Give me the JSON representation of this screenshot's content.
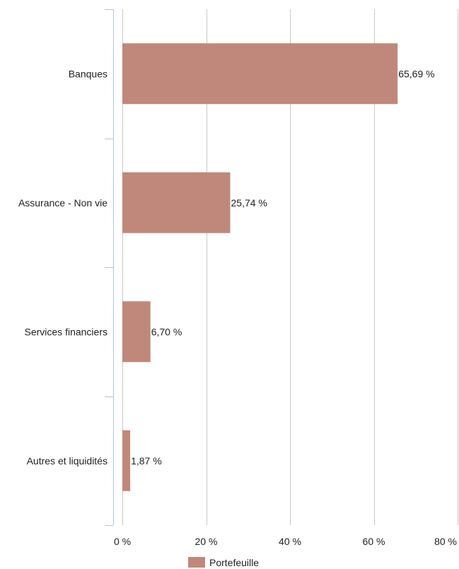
{
  "chart_data": {
    "type": "bar",
    "orientation": "horizontal",
    "categories": [
      "Banques",
      "Assurance - Non vie",
      "Services financiers",
      "Autres et liquidités"
    ],
    "series": [
      {
        "name": "Portefeuille",
        "values": [
          65.69,
          25.74,
          6.7,
          1.87
        ],
        "color": "#c0887a"
      }
    ],
    "data_labels": [
      "65,69 %",
      "25,74 %",
      "6,70 %",
      "1,87 %"
    ],
    "x_ticks": [
      0,
      20,
      40,
      60,
      80
    ],
    "x_tick_labels": [
      "0 %",
      "20 %",
      "40 %",
      "60 %",
      "80 %"
    ],
    "xlim": [
      0,
      80
    ],
    "grid": true,
    "legend_position": "bottom-center",
    "colors": {
      "grid": "#c8c8c8",
      "axis": "#b0c4de",
      "text": "#222222"
    }
  }
}
